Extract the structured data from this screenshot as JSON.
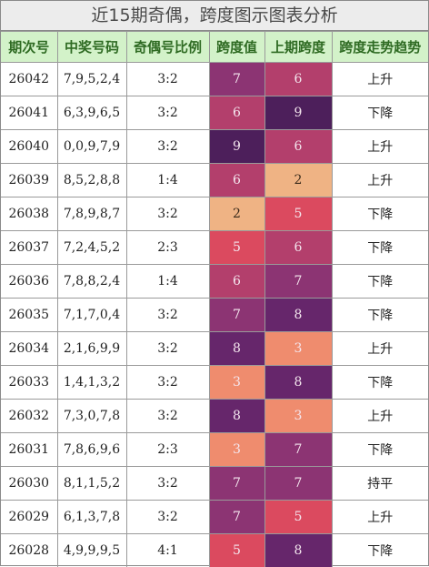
{
  "title": "近15期奇偶，跨度图示图表分析",
  "headers": [
    "期次号",
    "中奖号码",
    "奇偶号比例",
    "跨度值",
    "上期跨度",
    "跨度走势趋势"
  ],
  "heat_colors": {
    "2": "#efb384",
    "3": "#ef8c6e",
    "5": "#db4a5f",
    "6": "#b33f6c",
    "7": "#8c3473",
    "8": "#66266b",
    "9": "#4d1f5b"
  },
  "rows": [
    {
      "issue": "26042",
      "numbers": "7,9,5,2,4",
      "ratio": "3:2",
      "span": "7",
      "prev_span": "6",
      "trend": "上升"
    },
    {
      "issue": "26041",
      "numbers": "6,3,9,6,5",
      "ratio": "3:2",
      "span": "6",
      "prev_span": "9",
      "trend": "下降"
    },
    {
      "issue": "26040",
      "numbers": "0,0,9,7,9",
      "ratio": "3:2",
      "span": "9",
      "prev_span": "6",
      "trend": "上升"
    },
    {
      "issue": "26039",
      "numbers": "8,5,2,8,8",
      "ratio": "1:4",
      "span": "6",
      "prev_span": "2",
      "trend": "上升"
    },
    {
      "issue": "26038",
      "numbers": "7,8,9,8,7",
      "ratio": "3:2",
      "span": "2",
      "prev_span": "5",
      "trend": "下降"
    },
    {
      "issue": "26037",
      "numbers": "7,2,4,5,2",
      "ratio": "2:3",
      "span": "5",
      "prev_span": "6",
      "trend": "下降"
    },
    {
      "issue": "26036",
      "numbers": "7,8,8,2,4",
      "ratio": "1:4",
      "span": "6",
      "prev_span": "7",
      "trend": "下降"
    },
    {
      "issue": "26035",
      "numbers": "7,1,7,0,4",
      "ratio": "3:2",
      "span": "7",
      "prev_span": "8",
      "trend": "下降"
    },
    {
      "issue": "26034",
      "numbers": "2,1,6,9,9",
      "ratio": "3:2",
      "span": "8",
      "prev_span": "3",
      "trend": "上升"
    },
    {
      "issue": "26033",
      "numbers": "1,4,1,3,2",
      "ratio": "3:2",
      "span": "3",
      "prev_span": "8",
      "trend": "下降"
    },
    {
      "issue": "26032",
      "numbers": "7,3,0,7,8",
      "ratio": "3:2",
      "span": "8",
      "prev_span": "3",
      "trend": "上升"
    },
    {
      "issue": "26031",
      "numbers": "7,8,6,9,6",
      "ratio": "2:3",
      "span": "3",
      "prev_span": "7",
      "trend": "下降"
    },
    {
      "issue": "26030",
      "numbers": "8,1,1,5,2",
      "ratio": "3:2",
      "span": "7",
      "prev_span": "7",
      "trend": "持平"
    },
    {
      "issue": "26029",
      "numbers": "6,1,3,7,8",
      "ratio": "3:2",
      "span": "7",
      "prev_span": "5",
      "trend": "上升"
    },
    {
      "issue": "26028",
      "numbers": "4,9,9,9,5",
      "ratio": "4:1",
      "span": "5",
      "prev_span": "8",
      "trend": "下降"
    }
  ]
}
